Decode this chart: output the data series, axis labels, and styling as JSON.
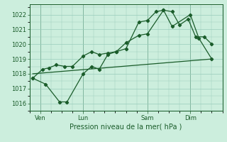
{
  "bg_color": "#cceedd",
  "grid_color": "#99ccbb",
  "line_color": "#1a5c2a",
  "xlabel": "Pression niveau de la mer( hPa )",
  "ylim": [
    1015.5,
    1022.7
  ],
  "yticks": [
    1016,
    1017,
    1018,
    1019,
    1020,
    1021,
    1022
  ],
  "xtick_labels": [
    "Ven",
    "Lun",
    "Sam",
    "Dim"
  ],
  "xtick_positions": [
    1,
    5,
    11,
    15
  ],
  "xlim": [
    0,
    18
  ],
  "line1_x": [
    0.3,
    1.2,
    1.8,
    2.5,
    3.3,
    4.0,
    5.0,
    5.8,
    6.5,
    7.3,
    8.1,
    9.0,
    10.2,
    11.0,
    11.8,
    12.5,
    13.3,
    14.0,
    14.8,
    15.5,
    16.3,
    17.0
  ],
  "line1_y": [
    1017.7,
    1018.3,
    1018.4,
    1018.6,
    1018.5,
    1018.5,
    1019.2,
    1019.5,
    1019.3,
    1019.4,
    1019.5,
    1019.7,
    1021.5,
    1021.6,
    1022.2,
    1022.3,
    1022.2,
    1021.3,
    1021.7,
    1020.5,
    1020.5,
    1020.0
  ],
  "line2_x": [
    0.3,
    1.5,
    2.8,
    3.5,
    5.0,
    5.8,
    6.5,
    7.3,
    8.1,
    9.0,
    10.2,
    11.0,
    12.5,
    13.3,
    15.0,
    15.8,
    17.0
  ],
  "line2_y": [
    1017.7,
    1017.3,
    1016.1,
    1016.1,
    1018.0,
    1018.5,
    1018.3,
    1019.3,
    1019.5,
    1020.1,
    1020.6,
    1020.7,
    1022.3,
    1021.2,
    1022.0,
    1020.4,
    1019.0
  ],
  "line3_x": [
    0.3,
    17.0
  ],
  "line3_y": [
    1018.0,
    1019.0
  ],
  "ylabel_fontsize": 6,
  "xlabel_fontsize": 7,
  "tick_fontsize": 6
}
